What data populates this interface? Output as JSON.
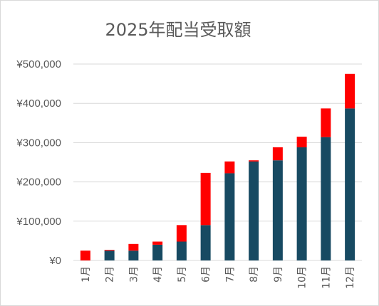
{
  "chart_data": {
    "type": "bar",
    "stacked": true,
    "title": "2025年配当受取額",
    "categories": [
      "1月",
      "2月",
      "3月",
      "4月",
      "5月",
      "6月",
      "7月",
      "8月",
      "9月",
      "10月",
      "11月",
      "12月"
    ],
    "series": [
      {
        "color": "#174a62",
        "values": [
          0,
          25000,
          25000,
          40000,
          48000,
          90000,
          222000,
          252000,
          255000,
          288000,
          314000,
          387000
        ]
      },
      {
        "color": "#ff0000",
        "values": [
          25000,
          2000,
          17000,
          8000,
          42000,
          133000,
          30000,
          3000,
          33000,
          27000,
          73000,
          88000
        ]
      }
    ],
    "ylim": [
      0,
      500000
    ],
    "yticks": [
      "¥0",
      "¥100,000",
      "¥200,000",
      "¥300,000",
      "¥400,000",
      "¥500,000"
    ],
    "grid": true,
    "legend": "none"
  }
}
